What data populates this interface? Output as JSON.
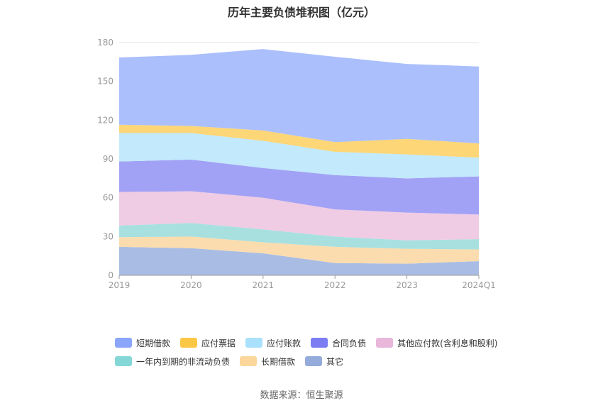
{
  "title": "历年主要负债堆积图（亿元）",
  "source": "数据来源：恒生聚源",
  "chart_data": {
    "type": "area",
    "stacked": true,
    "categories": [
      "2019",
      "2020",
      "2021",
      "2022",
      "2023",
      "2024Q1"
    ],
    "ylim": [
      0,
      180
    ],
    "yticks": [
      0,
      30,
      60,
      90,
      120,
      150,
      180
    ],
    "grid": true,
    "legend_position": "bottom",
    "series": [
      {
        "name": "其它",
        "color": "#a9bde4",
        "values": [
          22,
          21,
          17,
          9.5,
          9,
          11
        ]
      },
      {
        "name": "长期借款",
        "color": "#fbdcae",
        "values": [
          7.5,
          9,
          8.5,
          12.5,
          11.5,
          9
        ]
      },
      {
        "name": "一年内到期的非流动负债",
        "color": "#a8e0e0",
        "values": [
          9,
          10.5,
          10,
          8,
          6.5,
          8
        ]
      },
      {
        "name": "其他应付款(含利息和股利)",
        "color": "#efcbe4",
        "values": [
          26,
          24.5,
          24.5,
          21,
          21.5,
          19
        ]
      },
      {
        "name": "合同负债",
        "color": "#a1a2f5",
        "values": [
          23.5,
          24.5,
          23,
          26.5,
          26.5,
          29.5
        ]
      },
      {
        "name": "应付账款",
        "color": "#c2e9fc",
        "values": [
          22,
          20.5,
          21,
          18,
          18.5,
          14.5
        ]
      },
      {
        "name": "应付票据",
        "color": "#fcd677",
        "values": [
          6.5,
          5.5,
          8,
          7.5,
          12,
          11
        ]
      },
      {
        "name": "短期借款",
        "color": "#abbffc",
        "values": [
          52,
          55,
          63,
          66,
          58,
          59.5
        ]
      }
    ]
  },
  "legend": {
    "row1": [
      {
        "name": "短期借款",
        "color": "#8ba5fa"
      },
      {
        "name": "应付票据",
        "color": "#fbc845"
      },
      {
        "name": "应付账款",
        "color": "#a9e0fb"
      },
      {
        "name": "合同负债",
        "color": "#7b7cf2"
      },
      {
        "name": "其他应付款(含利息和股利)",
        "color": "#e9b7da"
      }
    ],
    "row2": [
      {
        "name": "一年内到期的非流动负债",
        "color": "#85d6d6"
      },
      {
        "name": "长期借款",
        "color": "#fcd79c"
      },
      {
        "name": "其它",
        "color": "#94abdb"
      }
    ]
  }
}
